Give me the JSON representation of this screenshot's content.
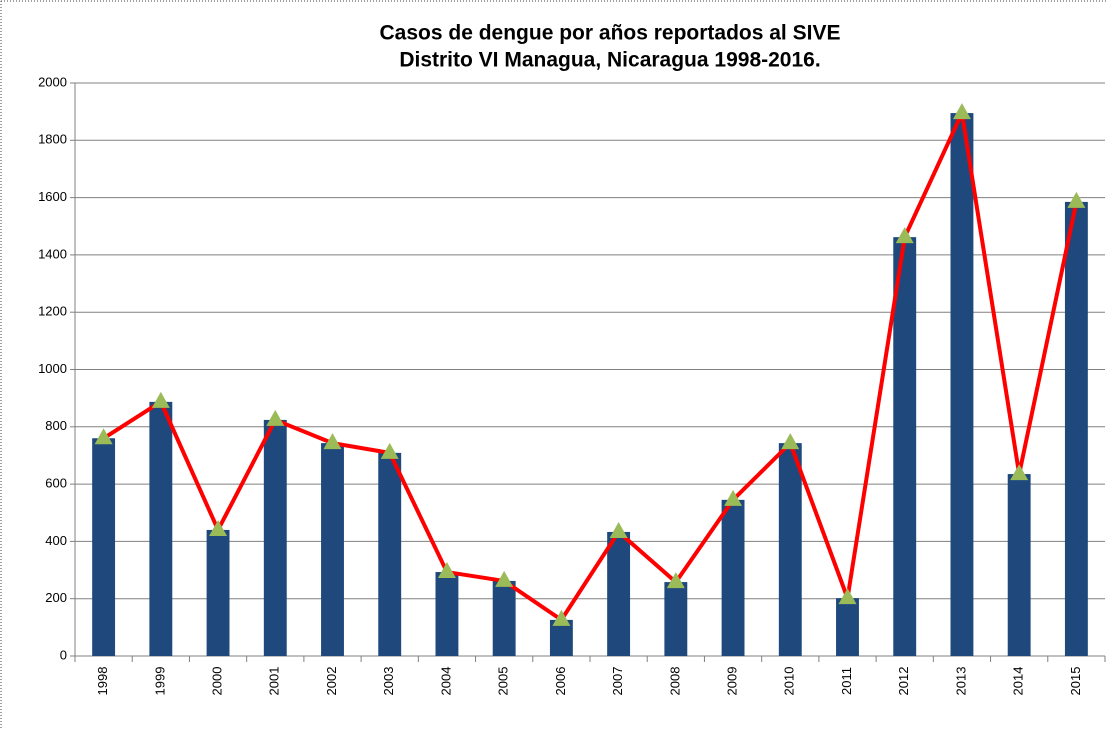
{
  "chart_data": {
    "type": "bar",
    "title": "Casos de dengue por años reportados al SIVE",
    "subtitle": "Distrito VI Managua, Nicaragua 1998-2016.",
    "categories": [
      "1998",
      "1999",
      "2000",
      "2001",
      "2002",
      "2003",
      "2004",
      "2005",
      "2006",
      "2007",
      "2008",
      "2009",
      "2010",
      "2011",
      "2012",
      "2013",
      "2014",
      "2015"
    ],
    "series": [
      {
        "type": "bar",
        "color": "#1f497d",
        "values": [
          760,
          887,
          440,
          824,
          743,
          709,
          293,
          262,
          126,
          433,
          258,
          545,
          743,
          202,
          1462,
          1895,
          635,
          1585
        ]
      },
      {
        "type": "line",
        "color": "#ff0000",
        "marker_color": "#9bbb59",
        "values": [
          760,
          887,
          440,
          824,
          743,
          709,
          293,
          262,
          126,
          433,
          258,
          545,
          743,
          202,
          1462,
          1895,
          635,
          1585
        ]
      }
    ],
    "ylim": [
      0,
      2000
    ],
    "yticks": [
      0,
      200,
      400,
      600,
      800,
      1000,
      1200,
      1400,
      1600,
      1800,
      2000
    ],
    "grid": true
  }
}
